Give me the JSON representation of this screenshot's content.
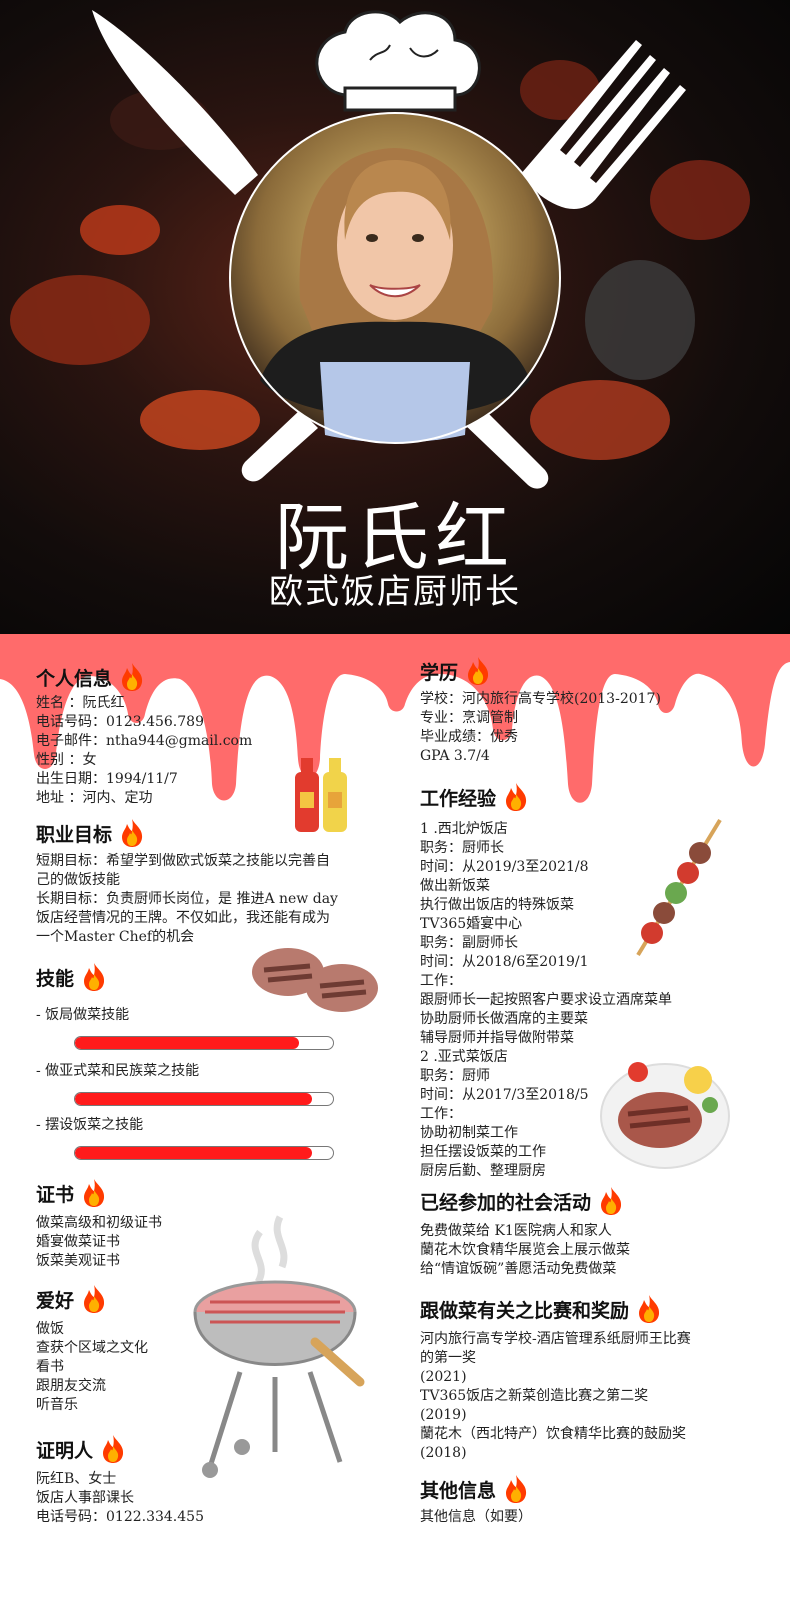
{
  "header": {
    "name": "阮氏红",
    "role": "欧式饭店厨师长"
  },
  "icons": {
    "flame": "flame-icon",
    "knife": "knife-icon",
    "fork": "fork-icon",
    "chef_hat": "chef-hat-icon"
  },
  "colors": {
    "drip": "#ff6b6b",
    "skill_bar": "#ff1b1b"
  },
  "personal": {
    "heading": "个人信息",
    "lines": [
      "姓名    ：阮氏红",
      "电话号码：0123.456.789",
      "电子邮件：ntha944@gmail.com",
      "性别    ：女",
      "出生日期：1994/11/7",
      "地址    ：河内、定功"
    ]
  },
  "objective": {
    "heading": "职业目标",
    "lines": [
      "短期目标：希望学到做欧式饭菜之技能以完善自",
      "己的做饭技能",
      "长期目标：负责厨师长岗位，是 推进A new day",
      "饭店经营情况的王牌。不仅如此，我还能有成为",
      "一个Master Chef的机会"
    ]
  },
  "skills": {
    "heading": "技能",
    "items": [
      {
        "label": "- 饭局做菜技能",
        "level": 0.87
      },
      {
        "label": "- 做亚式菜和民族菜之技能",
        "level": 0.92
      },
      {
        "label": "- 摆设饭菜之技能",
        "level": 0.92
      }
    ]
  },
  "certificates": {
    "heading": "证书",
    "lines": [
      "做菜高级和初级证书",
      "婚宴做菜证书",
      "饭菜美观证书"
    ]
  },
  "hobbies": {
    "heading": "爱好",
    "lines": [
      "做饭",
      "查获个区域之文化",
      "看书",
      "跟朋友交流",
      "听音乐"
    ]
  },
  "references": {
    "heading": "证明人",
    "lines": [
      "阮红B、女士",
      "饭店人事部课长",
      "电话号码：0122.334.455"
    ]
  },
  "education": {
    "heading": "学历",
    "lines": [
      "学校：河内旅行高专学校(2013-2017)",
      "专业：烹调管制",
      "毕业成绩：优秀",
      "GPA 3.7/4"
    ]
  },
  "experience": {
    "heading": "工作经验",
    "lines": [
      "1 .西北炉饭店",
      "职务：厨师长",
      "时间：从2019/3至2021/8",
      "做出新饭菜",
      "执行做出饭店的特殊饭菜",
      "TV365婚宴中心",
      "职务：副厨师长",
      "时间：从2018/6至2019/1",
      "工作：",
      "跟厨师长一起按照客户要求设立酒席菜单",
      "协助厨师长做酒席的主要菜",
      "辅导厨师并指导做附带菜",
      "2 .亚式菜饭店",
      "职务：厨师",
      "时间：从2017/3至2018/5",
      "工作：",
      "协助初制菜工作",
      "担任摆设饭菜的工作",
      "厨房后勤、整理厨房"
    ]
  },
  "activities": {
    "heading": "已经参加的社会活动",
    "lines": [
      "免费做菜给 K1医院病人和家人",
      "蘭花木饮食精华展览会上展示做菜",
      "给“情谊饭碗”善愿活动免费做菜"
    ]
  },
  "awards": {
    "heading": "跟做菜有关之比赛和奖励",
    "lines": [
      "河内旅行高专学校-酒店管理系纸厨师王比赛",
      "的第一奖",
      "(2021)",
      "TV365饭店之新菜创造比赛之第二奖",
      "(2019)",
      "蘭花木（西北特产）饮食精华比赛的鼓励奖",
      "(2018)"
    ]
  },
  "other": {
    "heading": "其他信息",
    "lines": [
      "其他信息（如要）"
    ]
  }
}
